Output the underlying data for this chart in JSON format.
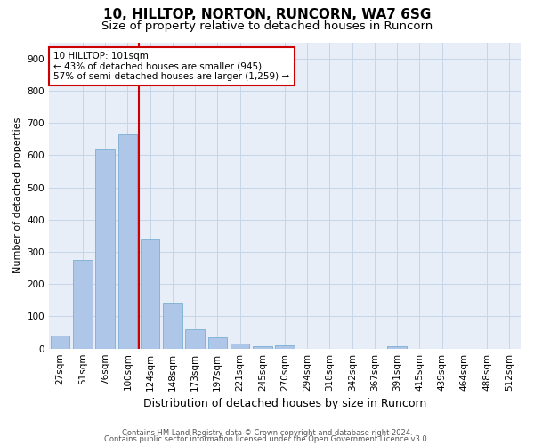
{
  "title1": "10, HILLTOP, NORTON, RUNCORN, WA7 6SG",
  "title2": "Size of property relative to detached houses in Runcorn",
  "xlabel": "Distribution of detached houses by size in Runcorn",
  "ylabel": "Number of detached properties",
  "categories": [
    "27sqm",
    "51sqm",
    "76sqm",
    "100sqm",
    "124sqm",
    "148sqm",
    "173sqm",
    "197sqm",
    "221sqm",
    "245sqm",
    "270sqm",
    "294sqm",
    "318sqm",
    "342sqm",
    "367sqm",
    "391sqm",
    "415sqm",
    "439sqm",
    "464sqm",
    "488sqm",
    "512sqm"
  ],
  "values": [
    40,
    275,
    620,
    665,
    340,
    140,
    60,
    35,
    15,
    8,
    10,
    0,
    0,
    0,
    0,
    8,
    0,
    0,
    0,
    0,
    0
  ],
  "bar_color": "#aec6e8",
  "bar_edge_color": "#7aaed4",
  "property_line_index": 3,
  "property_line_color": "#cc0000",
  "annotation_line1": "10 HILLTOP: 101sqm",
  "annotation_line2": "← 43% of detached houses are smaller (945)",
  "annotation_line3": "57% of semi-detached houses are larger (1,259) →",
  "annotation_box_color": "#ffffff",
  "annotation_box_edge_color": "#cc0000",
  "ylim": [
    0,
    950
  ],
  "yticks": [
    0,
    100,
    200,
    300,
    400,
    500,
    600,
    700,
    800,
    900
  ],
  "grid_color": "#c8d4e8",
  "background_color": "#e8eef8",
  "footer1": "Contains HM Land Registry data © Crown copyright and database right 2024.",
  "footer2": "Contains public sector information licensed under the Open Government Licence v3.0.",
  "title_fontsize": 11,
  "subtitle_fontsize": 9.5,
  "xlabel_fontsize": 9,
  "ylabel_fontsize": 8,
  "tick_fontsize": 7.5,
  "annotation_fontsize": 7.5,
  "footer_fontsize": 6
}
